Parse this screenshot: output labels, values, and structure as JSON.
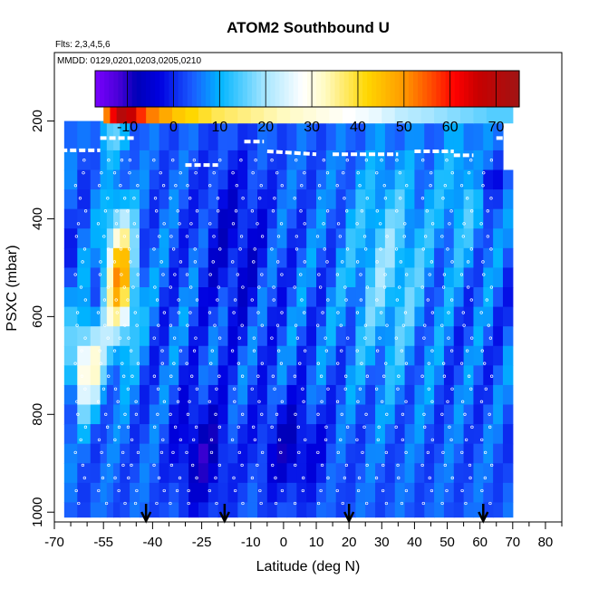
{
  "chart_data": {
    "type": "heatmap",
    "title": "ATOM2 Southbound U",
    "subtitle_flights": "Flts: 2,3,4,5,6",
    "subtitle_dates": "MMDD: 0129,0201,0203,0205,0210",
    "xlabel": "Latitude (deg N)",
    "ylabel": "PSXC (mbar)",
    "xlim": [
      -70,
      85
    ],
    "ylim": [
      1020,
      60
    ],
    "x_tick_values": [
      -70,
      -55,
      -40,
      -25,
      -10,
      0,
      10,
      20,
      30,
      40,
      50,
      60,
      70,
      80
    ],
    "x_tick_labels": [
      "-70",
      "-55",
      "-40",
      "-25",
      "-10",
      "0",
      "10",
      "20",
      "30",
      "40",
      "50",
      "60",
      "70",
      "80"
    ],
    "x_minor_ticks": [
      -65,
      -60,
      -50,
      -45,
      -35,
      -30,
      -20,
      -15,
      -5,
      5,
      15,
      25,
      35,
      45,
      55,
      65,
      75,
      85
    ],
    "y_tick_values": [
      200,
      400,
      600,
      800,
      1000
    ],
    "y_tick_labels": [
      "200",
      "400",
      "600",
      "800",
      "1000"
    ],
    "colorbar": {
      "min": -17,
      "max": 75,
      "ticks": [
        -10,
        0,
        10,
        20,
        30,
        40,
        50,
        60,
        70
      ],
      "tick_labels": [
        "-10",
        "0",
        "10",
        "20",
        "30",
        "40",
        "50",
        "60",
        "70"
      ],
      "colors": [
        "#7a00ff",
        "#4a00d8",
        "#0000b8",
        "#0000e0",
        "#1a5aff",
        "#00b4ff",
        "#a8e6ff",
        "#ffffff",
        "#fffac0",
        "#ffd700",
        "#ff9900",
        "#ff4a00",
        "#ff0000",
        "#c80000",
        "#a01414"
      ],
      "color_stops": [
        -17,
        -12,
        -8,
        -3,
        4,
        10,
        20,
        28,
        33,
        42,
        50,
        56,
        61,
        66,
        75
      ]
    },
    "pressure_levels": [
      200,
      260,
      300,
      340,
      380,
      420,
      460,
      500,
      540,
      580,
      620,
      660,
      700,
      740,
      780,
      820,
      860,
      900,
      940,
      980,
      1010
    ],
    "latitude_bins": [
      -67,
      -63,
      -59,
      -56,
      -54,
      -52,
      -50,
      -47,
      -44,
      -41,
      -38,
      -35,
      -32,
      -29,
      -26,
      -23,
      -20,
      -17,
      -14,
      -11,
      -8,
      -5,
      -2,
      1,
      4,
      7,
      10,
      13,
      16,
      19,
      22,
      25,
      28,
      31,
      34,
      37,
      40,
      43,
      46,
      49,
      52,
      55,
      58,
      61,
      64,
      67,
      70
    ],
    "upper_band": {
      "pressure_range": [
        160,
        205
      ],
      "latitudes": [
        -55,
        -53,
        -51,
        -48,
        -45,
        -42,
        -38,
        -34,
        -30,
        -26,
        -22,
        -18,
        -14,
        -10,
        -6,
        -2,
        2,
        6,
        10,
        14,
        18,
        22,
        26,
        30,
        34,
        38,
        42,
        46,
        50,
        54,
        58,
        62,
        66,
        70
      ],
      "values": [
        52,
        62,
        70,
        66,
        58,
        52,
        48,
        44,
        42,
        40,
        38,
        37,
        36,
        35,
        34,
        33,
        32,
        31,
        30,
        29,
        28,
        27,
        26,
        24,
        22,
        21,
        20,
        19,
        18,
        17,
        16,
        15,
        15,
        14
      ]
    },
    "flight_arrows_latitude": [
      -42,
      -18,
      20,
      61
    ],
    "notes": "Zonal wind U in m/s on latitude-pressure grid; white dashed segments and circles mark flight profile sampling."
  }
}
